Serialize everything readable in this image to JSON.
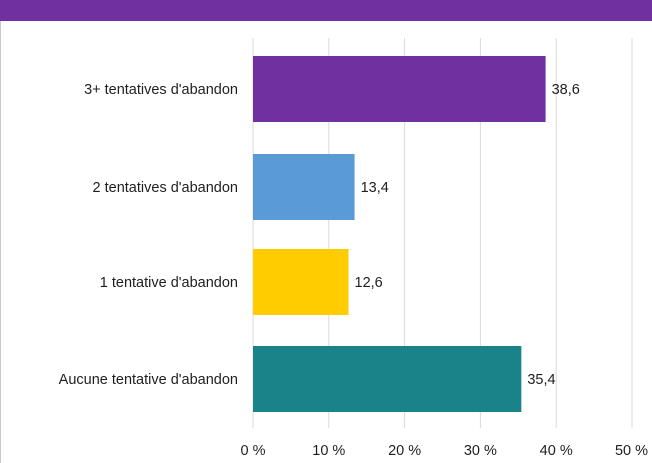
{
  "chart_data": {
    "type": "bar",
    "orientation": "horizontal",
    "categories": [
      "3+ tentatives d'abandon",
      "2 tentatives d'abandon",
      "1 tentative d'abandon",
      "Aucune tentative d'abandon"
    ],
    "values": [
      38.6,
      13.4,
      12.6,
      35.4
    ],
    "value_labels": [
      "38,6",
      "13,4",
      "12,6",
      "35,4"
    ],
    "bar_colors": [
      "#7030a0",
      "#5b9bd5",
      "#ffcc00",
      "#1a838a"
    ],
    "xlim": [
      0,
      50
    ],
    "x_ticks": [
      0,
      10,
      20,
      30,
      40,
      50
    ],
    "x_tick_labels": [
      "0 %",
      "10 %",
      "20 %",
      "30 %",
      "40 %",
      "50 %"
    ],
    "grid": true,
    "title": "",
    "xlabel": "",
    "ylabel": ""
  },
  "theme": {
    "band_color": "#7030a0",
    "grid_color": "#d9d9d9"
  }
}
